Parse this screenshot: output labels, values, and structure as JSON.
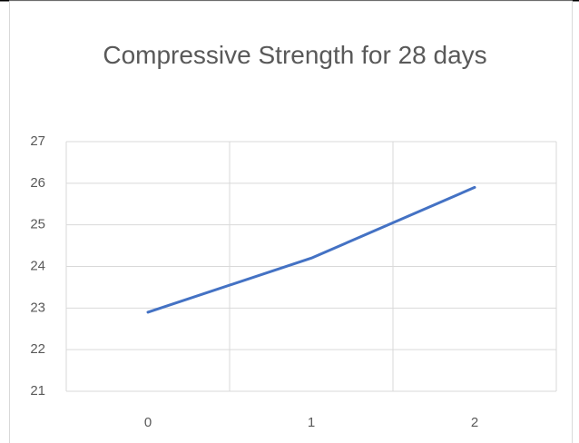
{
  "chart_data": {
    "type": "line",
    "title": "Compressive Strength for 28 days",
    "categories": [
      "0",
      "1",
      "2"
    ],
    "series": [
      {
        "color": "#4472c4",
        "values": [
          22.9,
          24.2,
          25.9
        ]
      }
    ],
    "ylim": [
      21,
      27
    ],
    "yticks": [
      21,
      22,
      23,
      24,
      25,
      26,
      27
    ],
    "grid": true
  }
}
